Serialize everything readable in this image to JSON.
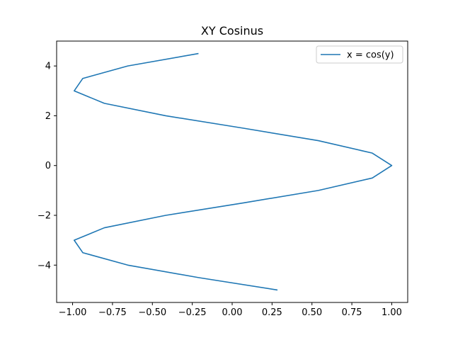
{
  "chart_data": {
    "type": "line",
    "title": "XY Cosinus",
    "xlabel": "",
    "ylabel": "",
    "xlim": [
      -1.1,
      1.1
    ],
    "ylim": [
      -5.5,
      5.0
    ],
    "xticks": [
      -1.0,
      -0.75,
      -0.5,
      -0.25,
      0.0,
      0.25,
      0.5,
      0.75,
      1.0
    ],
    "xtick_labels": [
      "−1.00",
      "−0.75",
      "−0.50",
      "−0.25",
      "0.00",
      "0.25",
      "0.50",
      "0.75",
      "1.00"
    ],
    "yticks": [
      -4,
      -2,
      0,
      2,
      4
    ],
    "ytick_labels": [
      "−4",
      "−2",
      "0",
      "2",
      "4"
    ],
    "grid": false,
    "legend_position": "top-right",
    "series": [
      {
        "name": "x = cos(y)",
        "color": "#1f77b4",
        "x": [
          0.284,
          -0.211,
          -0.654,
          -0.936,
          -0.99,
          -0.801,
          -0.416,
          0.071,
          0.54,
          0.878,
          1.0,
          0.878,
          0.54,
          0.071,
          -0.416,
          -0.801,
          -0.99,
          -0.936,
          -0.654,
          -0.211
        ],
        "y": [
          -5.0,
          -4.5,
          -4.0,
          -3.5,
          -3.0,
          -2.5,
          -2.0,
          -1.5,
          -1.0,
          -0.5,
          0.0,
          0.5,
          1.0,
          1.5,
          2.0,
          2.5,
          3.0,
          3.5,
          4.0,
          4.5
        ]
      }
    ]
  }
}
